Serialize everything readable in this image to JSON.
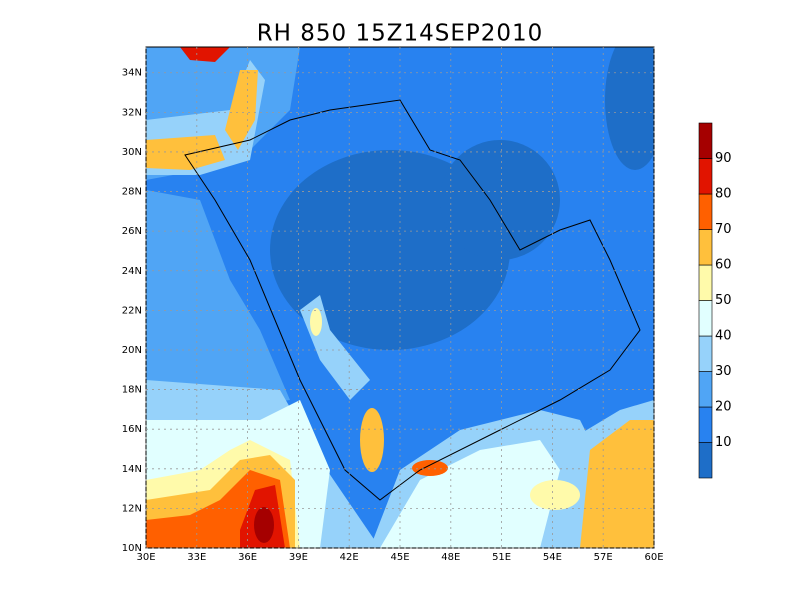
{
  "chart_data": {
    "type": "map",
    "title": "RH 850 15Z14SEP2010",
    "xlim": [
      30,
      60
    ],
    "xticks": [
      {
        "value": 30,
        "label": "30E"
      },
      {
        "value": 33,
        "label": "33E"
      },
      {
        "value": 36,
        "label": "36E"
      },
      {
        "value": 39,
        "label": "39E"
      },
      {
        "value": 42,
        "label": "42E"
      },
      {
        "value": 45,
        "label": "45E"
      },
      {
        "value": 48,
        "label": "48E"
      },
      {
        "value": 51,
        "label": "51E"
      },
      {
        "value": 54,
        "label": "54E"
      },
      {
        "value": 57,
        "label": "57E"
      },
      {
        "value": 60,
        "label": "60E"
      }
    ],
    "ylim": [
      10,
      35.3
    ],
    "yticks": [
      {
        "value": 10,
        "label": "10N"
      },
      {
        "value": 12,
        "label": "12N"
      },
      {
        "value": 14,
        "label": "14N"
      },
      {
        "value": 16,
        "label": "16N"
      },
      {
        "value": 18,
        "label": "18N"
      },
      {
        "value": 20,
        "label": "20N"
      },
      {
        "value": 22,
        "label": "22N"
      },
      {
        "value": 24,
        "label": "24N"
      },
      {
        "value": 26,
        "label": "26N"
      },
      {
        "value": 28,
        "label": "28N"
      },
      {
        "value": 30,
        "label": "30N"
      },
      {
        "value": 32,
        "label": "32N"
      },
      {
        "value": 34,
        "label": "34N"
      }
    ],
    "grid": true,
    "colorbar": {
      "lim": [
        0,
        100
      ],
      "levels": [
        10,
        20,
        30,
        40,
        50,
        60,
        70,
        80,
        90
      ],
      "colors": [
        "#1e6ec8",
        "#2882f0",
        "#50a5f5",
        "#96d2fa",
        "#e1ffff",
        "#fffaaa",
        "#ffc03c",
        "#ff6000",
        "#e11400",
        "#a50000"
      ]
    }
  }
}
